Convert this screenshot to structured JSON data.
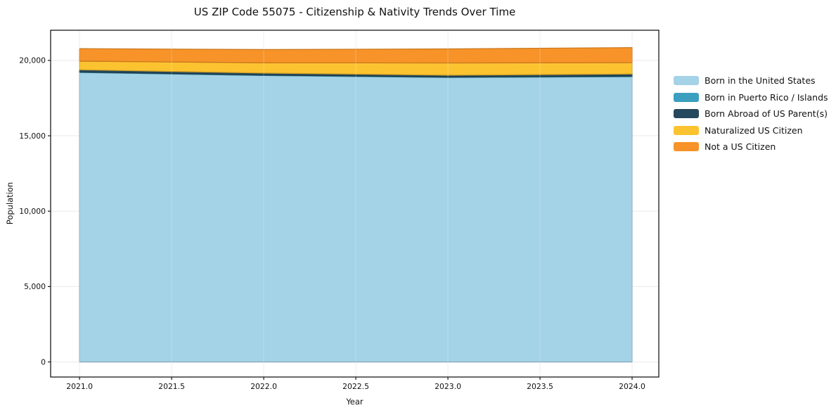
{
  "chart_data": {
    "type": "area",
    "stacked": true,
    "title": "US ZIP Code 55075 - Citizenship & Nativity Trends Over Time",
    "xlabel": "Year",
    "ylabel": "Population",
    "x": [
      2021,
      2022,
      2023,
      2024
    ],
    "series": [
      {
        "name": "Born in the United States",
        "color": "#a4d2e6",
        "values": [
          19200,
          19000,
          18870,
          18920
        ]
      },
      {
        "name": "Born in Puerto Rico / Islands",
        "color": "#3b9fc0",
        "values": [
          30,
          30,
          30,
          40
        ]
      },
      {
        "name": "Born Abroad of US Parent(s)",
        "color": "#25485c",
        "values": [
          150,
          130,
          120,
          140
        ]
      },
      {
        "name": "Naturalized US Citizen",
        "color": "#fcc330",
        "values": [
          570,
          680,
          810,
          750
        ]
      },
      {
        "name": "Not a US Citizen",
        "color": "#f79328",
        "values": [
          830,
          880,
          930,
          1000
        ]
      }
    ],
    "xlim": [
      2020.843,
      2024.145
    ],
    "ylim": [
      -1000,
      22000
    ],
    "xticks": {
      "values": [
        2021,
        2021.5,
        2022,
        2022.5,
        2023,
        2023.5,
        2024
      ],
      "labels": [
        "2021.0",
        "2021.5",
        "2022.0",
        "2022.5",
        "2023.0",
        "2023.5",
        "2024.0"
      ]
    },
    "yticks": {
      "values": [
        0,
        5000,
        10000,
        15000,
        20000
      ],
      "labels": [
        "0",
        "5,000",
        "10,000",
        "15,000",
        "20,000"
      ]
    },
    "grid": true,
    "grid_color": "#e9e9e9",
    "frame_color": "#1a1a1a",
    "legend_position": "right-outside"
  }
}
